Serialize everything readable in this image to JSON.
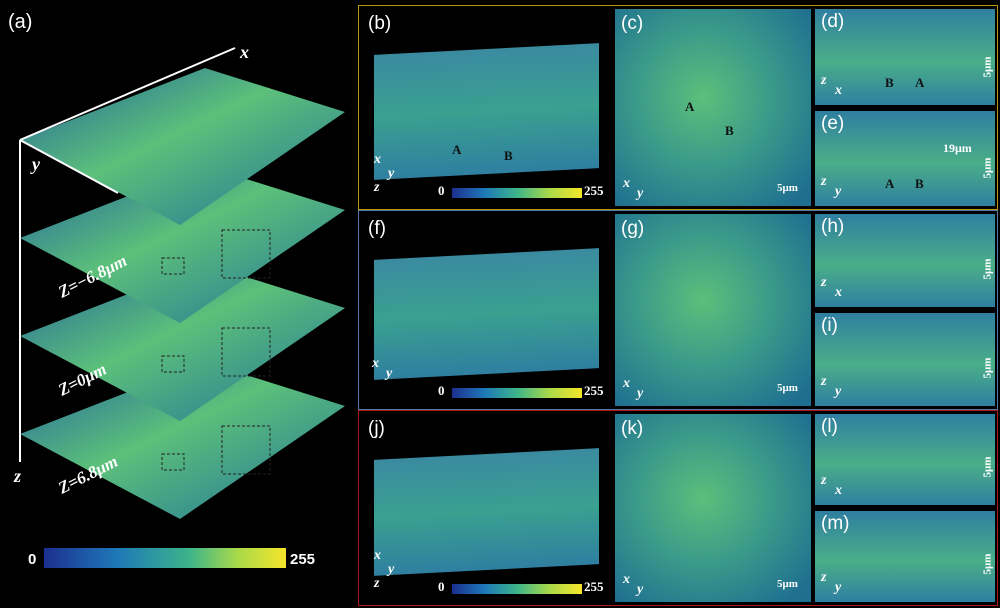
{
  "panel_a": {
    "label": "(a)",
    "axes": [
      "x",
      "y",
      "z"
    ],
    "slices": [
      "Z=−6.8μm",
      "Z=0μm",
      "Z=6.8μm"
    ],
    "colorbar": {
      "min": 0,
      "max": 255
    }
  },
  "rows": [
    {
      "volume": {
        "label": "(b)",
        "axes": [
          "x",
          "y",
          "z"
        ],
        "markers": [
          "A",
          "B"
        ],
        "colorbar": {
          "min": 0,
          "max": 255
        }
      },
      "top": {
        "label": "(c)",
        "axes": [
          "x",
          "y"
        ],
        "markers": [
          "A",
          "B"
        ],
        "scale": "5μm"
      },
      "sides": [
        {
          "label": "(d)",
          "axes": [
            "z",
            "x"
          ],
          "markers": [
            "B",
            "A"
          ],
          "scale": "5μm"
        },
        {
          "label": "(e)",
          "axes": [
            "z",
            "y"
          ],
          "markers": [
            "A",
            "B"
          ],
          "scale": "5μm",
          "annotation": "19μm"
        }
      ]
    },
    {
      "volume": {
        "label": "(f)",
        "axes": [
          "x",
          "y"
        ],
        "markers": [],
        "colorbar": {
          "min": 0,
          "max": 255
        }
      },
      "top": {
        "label": "(g)",
        "axes": [
          "x",
          "y"
        ],
        "markers": [],
        "scale": "5μm"
      },
      "sides": [
        {
          "label": "(h)",
          "axes": [
            "z",
            "x"
          ],
          "markers": [],
          "scale": "5μm"
        },
        {
          "label": "(i)",
          "axes": [
            "z",
            "y"
          ],
          "markers": [],
          "scale": "5μm"
        }
      ]
    },
    {
      "volume": {
        "label": "(j)",
        "axes": [
          "x",
          "y",
          "z"
        ],
        "markers": [],
        "colorbar": {
          "min": 0,
          "max": 255
        }
      },
      "top": {
        "label": "(k)",
        "axes": [
          "x",
          "y"
        ],
        "markers": [],
        "scale": "5μm"
      },
      "sides": [
        {
          "label": "(l)",
          "axes": [
            "z",
            "x"
          ],
          "markers": [],
          "scale": "5μm"
        },
        {
          "label": "(m)",
          "axes": [
            "z",
            "y"
          ],
          "markers": [],
          "scale": "5μm"
        }
      ]
    }
  ]
}
